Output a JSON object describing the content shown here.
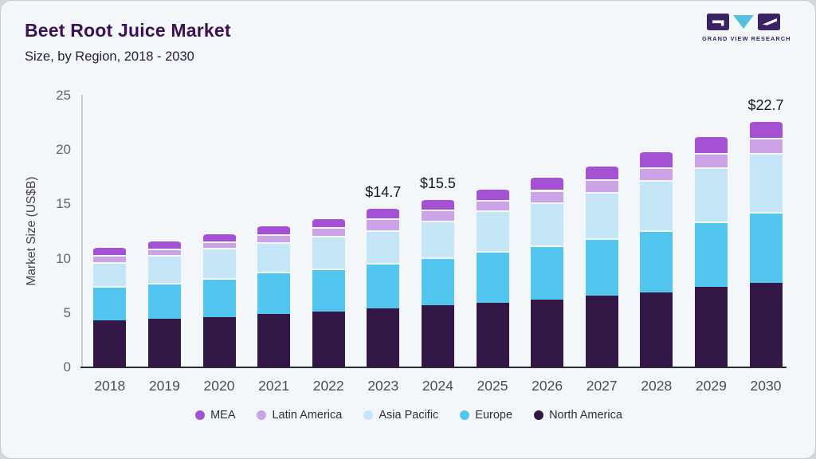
{
  "header": {
    "title": "Beet Root Juice Market",
    "subtitle": "Size, by Region, 2018 - 2030"
  },
  "logo": {
    "text": "GRAND VIEW RESEARCH"
  },
  "chart_data": {
    "type": "bar",
    "stacked": true,
    "title": "Beet Root Juice Market Size, by Region, 2018 - 2030",
    "xlabel": "",
    "ylabel": "Market Size (US$B)",
    "ylim": [
      0,
      25
    ],
    "yticks": [
      0,
      5,
      10,
      15,
      20,
      25
    ],
    "grid": false,
    "legend_position": "bottom",
    "categories": [
      "2018",
      "2019",
      "2020",
      "2021",
      "2022",
      "2023",
      "2024",
      "2025",
      "2026",
      "2027",
      "2028",
      "2029",
      "2030"
    ],
    "series": [
      {
        "name": "MEA",
        "color": "#a551d3",
        "values": [
          0.8,
          0.8,
          0.8,
          0.9,
          0.9,
          1.0,
          1.0,
          1.1,
          1.3,
          1.3,
          1.5,
          1.6,
          1.6
        ]
      },
      {
        "name": "Latin America",
        "color": "#cba3e6",
        "values": [
          0.6,
          0.6,
          0.6,
          0.7,
          0.8,
          1.1,
          1.0,
          1.0,
          1.1,
          1.2,
          1.2,
          1.3,
          1.4
        ]
      },
      {
        "name": "Asia Pacific",
        "color": "#c4e6f6",
        "values": [
          2.2,
          2.5,
          2.8,
          2.7,
          3.0,
          3.0,
          3.4,
          3.7,
          4.0,
          4.2,
          4.6,
          5.0,
          5.4
        ]
      },
      {
        "name": "Europe",
        "color": "#53c6f0",
        "values": [
          3.2,
          3.3,
          3.6,
          3.9,
          4.0,
          4.2,
          4.4,
          4.8,
          5.0,
          5.3,
          5.7,
          6.0,
          6.5
        ]
      },
      {
        "name": "North America",
        "color": "#321747",
        "values": [
          4.3,
          4.5,
          4.6,
          4.9,
          5.1,
          5.4,
          5.7,
          5.9,
          6.2,
          6.6,
          6.9,
          7.4,
          7.8
        ]
      }
    ],
    "totals": [
      11.1,
      11.7,
      12.4,
      13.1,
      13.8,
      14.7,
      15.5,
      16.5,
      17.6,
      18.6,
      19.9,
      21.3,
      22.7
    ],
    "total_labels": {
      "2023": "$14.7",
      "2024": "$15.5",
      "2030": "$22.7"
    }
  }
}
